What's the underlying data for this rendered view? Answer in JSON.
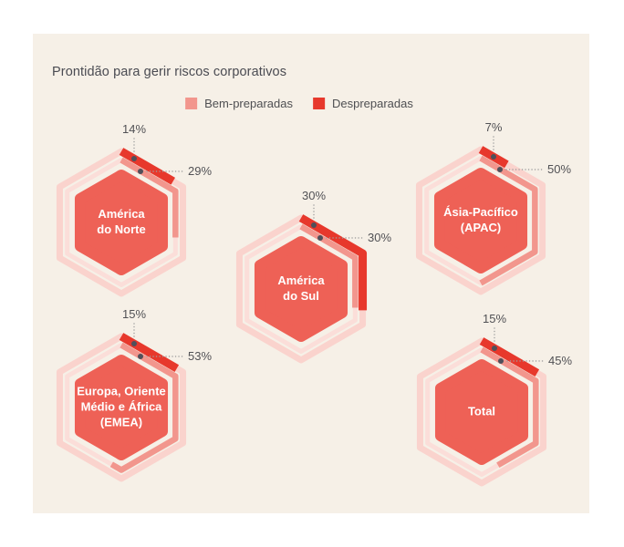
{
  "title": "Prontidão para gerir riscos corporativos",
  "legend": [
    {
      "label": "Bem-preparadas",
      "color": "#f2968d"
    },
    {
      "label": "Despreparadas",
      "color": "#e7382c"
    }
  ],
  "colors": {
    "panel_bg": "#f6f0e7",
    "ring_outer": "#fad3cd",
    "ring_inner": "#fbded9",
    "arc_despreparadas": "#e7382c",
    "arc_bem_preparadas": "#f2968d",
    "hexagon": "#ee6156",
    "title_text": "#4a4b52",
    "value_text": "#515155",
    "dot": "#50505a",
    "leader": "#9e9e9e",
    "center_text": "#ffffff"
  },
  "regions": [
    {
      "id": "north-america",
      "name": "América\ndo Norte",
      "despreparadas": "14%",
      "bem_preparadas": "29%"
    },
    {
      "id": "south-america",
      "name": "América\ndo Sul",
      "despreparadas": "30%",
      "bem_preparadas": "30%"
    },
    {
      "id": "apac",
      "name": "Ásia-Pacífico\n(APAC)",
      "despreparadas": "7%",
      "bem_preparadas": "50%"
    },
    {
      "id": "emea",
      "name": "Europa, Oriente\nMédio e África\n(EMEA)",
      "despreparadas": "15%",
      "bem_preparadas": "53%"
    },
    {
      "id": "total",
      "name": "Total",
      "despreparadas": "15%",
      "bem_preparadas": "45%"
    }
  ],
  "chart_data": {
    "type": "bar",
    "variant": "hexagon-progress-rings",
    "title": "Prontidão para gerir riscos corporativos",
    "categories": [
      "América do Norte",
      "América do Sul",
      "Ásia-Pacífico (APAC)",
      "Europa, Oriente Médio e África (EMEA)",
      "Total"
    ],
    "series": [
      {
        "name": "Bem-preparadas",
        "color": "#f2968d",
        "ring": "inner",
        "values": [
          29,
          30,
          50,
          53,
          45
        ]
      },
      {
        "name": "Despreparadas",
        "color": "#e7382c",
        "ring": "outer",
        "values": [
          14,
          30,
          7,
          15,
          15
        ]
      }
    ],
    "unit": "%",
    "value_range": [
      0,
      100
    ],
    "legend_position": "top",
    "note": "Each hexagon shows two ring arcs starting at the top vertex clockwise; outer red arc = Despreparadas (top label), inner salmon arc = Bem-preparadas (side label)."
  }
}
